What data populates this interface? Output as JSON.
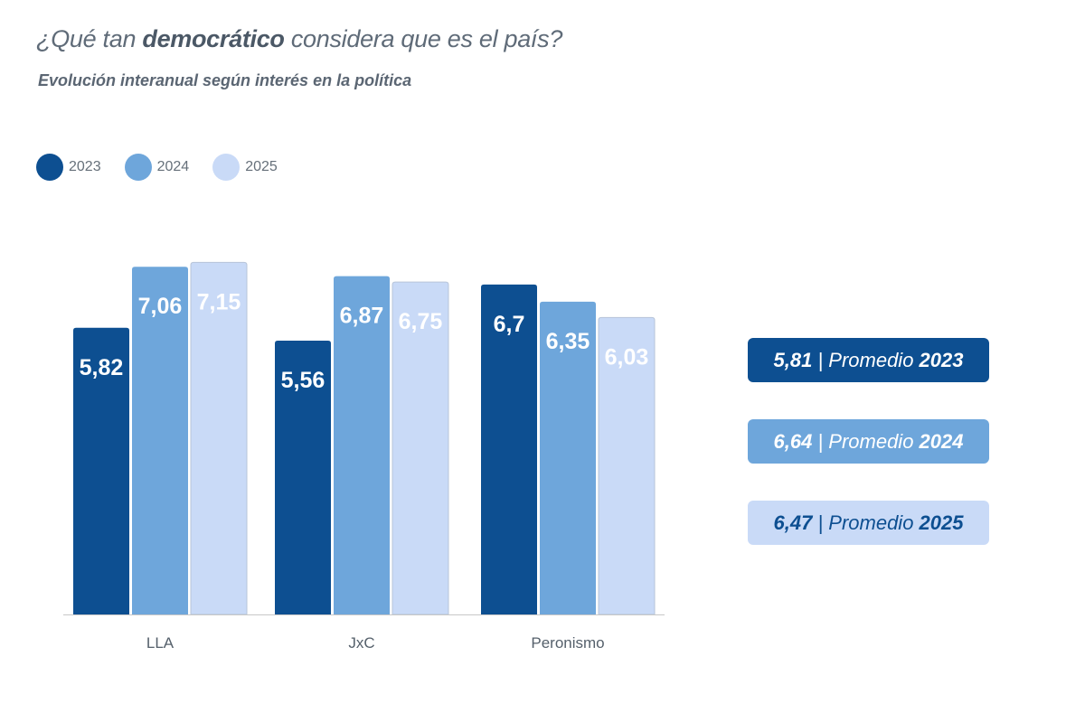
{
  "title": {
    "pre": "¿Qué tan ",
    "bold": "democrático",
    "post": " considera que es el país?"
  },
  "subtitle": "Evolución interanual según interés en la política",
  "colors": {
    "2023": "#0d4f91",
    "2024": "#6ea6db",
    "2025": "#c9daf7"
  },
  "chart_data": {
    "type": "bar",
    "title": "¿Qué tan democrático considera que es el país?",
    "subtitle": "Evolución interanual según interés en la política",
    "categories": [
      "LLA",
      "JxC",
      "Peronismo"
    ],
    "series": [
      {
        "name": "2023",
        "values": [
          5.82,
          5.56,
          6.7
        ]
      },
      {
        "name": "2024",
        "values": [
          7.06,
          6.87,
          6.35
        ]
      },
      {
        "name": "2025",
        "values": [
          7.15,
          6.75,
          6.03
        ]
      }
    ],
    "labels": [
      [
        "5,82",
        "5,56",
        "6,7"
      ],
      [
        "7,06",
        "6,87",
        "6,35"
      ],
      [
        "7,15",
        "6,75",
        "6,03"
      ]
    ],
    "ylim": [
      0,
      7.15
    ],
    "grid": false,
    "legend": "top-left"
  },
  "averages": [
    {
      "value": "5,81",
      "sep": " | Promedio ",
      "year": "2023"
    },
    {
      "value": "6,64",
      "sep": " | Promedio ",
      "year": "2024"
    },
    {
      "value": "6,47",
      "sep": " | Promedio ",
      "year": "2025"
    }
  ]
}
